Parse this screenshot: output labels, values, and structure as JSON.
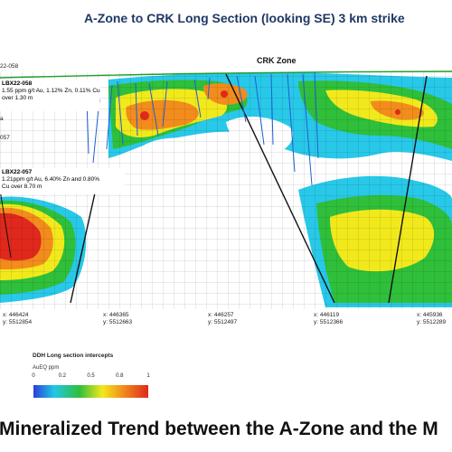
{
  "title": "A-Zone to CRK Long Section (looking SE) 3 km strike",
  "edge_label": "22-058",
  "zone_label": "CRK Zone",
  "left_fragments": [
    "a",
    "057"
  ],
  "annotations": [
    {
      "hole": "LBX22-058",
      "lines": [
        "1.55 ppm g/t Au, 1.12% Zn, 0.11% Cu",
        "over 1.30 m"
      ]
    },
    {
      "hole": "LBX22-057",
      "lines": [
        "1.21ppm g/t Au, 6.40% Zn and 0.80%",
        "Cu over 8.70 m"
      ]
    }
  ],
  "coordinates": [
    {
      "x": "x: 446424",
      "y": "y: 5512854"
    },
    {
      "x": "x: 446365",
      "y": "y: 5512663"
    },
    {
      "x": "x: 446257",
      "y": "y: 5512497"
    },
    {
      "x": "x: 446119",
      "y": "y: 5512366"
    },
    {
      "x": "x: 445936",
      "y": "y: 5512289"
    }
  ],
  "legend": {
    "title": "DDH Long section intercepts",
    "unit": "AuEQ ppm",
    "ticks": [
      "0",
      "0.2",
      "0.5",
      "0.8",
      "1"
    ],
    "scale_colors": [
      "#2a3fd6",
      "#22c7e8",
      "#2fbf3a",
      "#f2e91c",
      "#f28c1c",
      "#e0281c"
    ]
  },
  "colors": {
    "title": "#1f3864",
    "surface_line": "#1e9e2a",
    "grade_low": "#28c8e8",
    "grade_mid": "#2fbf3a",
    "grade_high": "#f2e91c",
    "grade_higher": "#f28c1c",
    "grade_peak": "#e0281c",
    "fault": "#111111",
    "drillhole": "#1f5fd6"
  },
  "caption": "Mineralized Trend between the A-Zone and the M"
}
